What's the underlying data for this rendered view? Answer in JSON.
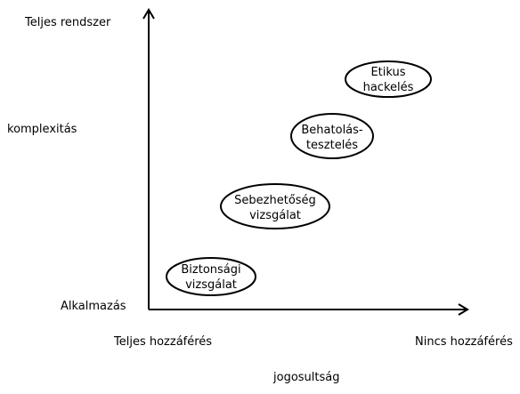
{
  "y_axis": {
    "title": "komplexitás",
    "top_label": "Teljes rendszer",
    "bottom_label": "Alkalmazás"
  },
  "x_axis": {
    "title": "jogosultság",
    "left_label": "Teljes hozzáférés",
    "right_label": "Nincs hozzáférés"
  },
  "nodes": [
    {
      "line1": "Etikus",
      "line2": "hackelés"
    },
    {
      "line1": "Behatolás-",
      "line2": "tesztelés"
    },
    {
      "line1": "Sebezhetőség",
      "line2": "vizsgálat"
    },
    {
      "line1": "Biztonsági",
      "line2": "vizsgálat"
    }
  ],
  "colors": {
    "stroke": "#000000",
    "background": "#ffffff"
  }
}
